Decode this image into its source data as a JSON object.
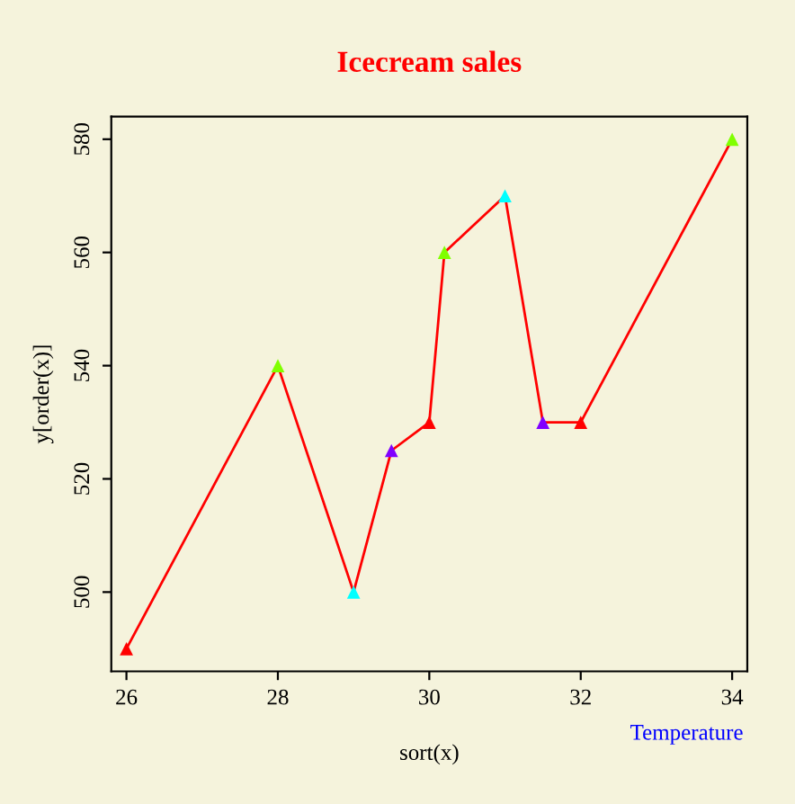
{
  "chart_data": {
    "type": "line",
    "title": "Icecream sales",
    "xlabel": "sort(x)",
    "ylabel": "y[order(x)]",
    "x": [
      26,
      28,
      29,
      29.5,
      30,
      30.2,
      31,
      31.5,
      32,
      34
    ],
    "series": [
      {
        "color": "#ff0000",
        "values": [
          490,
          540,
          500,
          525,
          530,
          560,
          570,
          530,
          530,
          580
        ],
        "colors": [
          "#ff0000",
          "#80ff00",
          "#00ffff",
          "#8000ff",
          "#ff0000",
          "#80ff00",
          "#00ffff",
          "#8000ff",
          "#ff0000",
          "#80ff00"
        ]
      }
    ],
    "marker": "triangle",
    "xlim": [
      25.8,
      34.2
    ],
    "ylim": [
      486,
      584
    ],
    "xticks": [
      26,
      28,
      30,
      32,
      34
    ],
    "yticks": [
      500,
      520,
      540,
      560,
      580
    ],
    "annotations": [
      "Temperature"
    ],
    "grid": false,
    "legend": false
  }
}
